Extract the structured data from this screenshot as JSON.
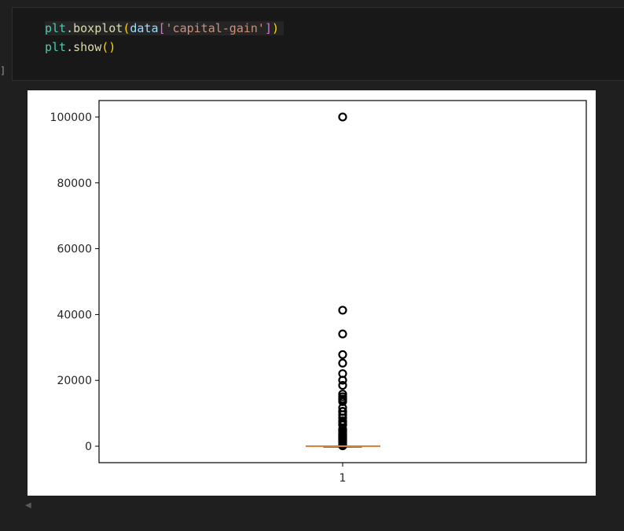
{
  "cell": {
    "execution_bracket": "]",
    "code_lines": [
      [
        {
          "t": "plt",
          "c": "var"
        },
        {
          "t": ".",
          "c": "punc"
        },
        {
          "t": "boxplot",
          "c": "fn"
        },
        {
          "t": "(",
          "c": "paren"
        },
        {
          "t": "data",
          "c": "param"
        },
        {
          "t": "[",
          "c": "brack"
        },
        {
          "t": "'capital-gain'",
          "c": "str"
        },
        {
          "t": "]",
          "c": "brack"
        },
        {
          "t": ")",
          "c": "paren"
        }
      ],
      [
        {
          "t": "plt",
          "c": "var"
        },
        {
          "t": ".",
          "c": "punc"
        },
        {
          "t": "show",
          "c": "fn"
        },
        {
          "t": "(",
          "c": "paren"
        },
        {
          "t": ")",
          "c": "paren"
        }
      ]
    ]
  },
  "chart_data": {
    "type": "boxplot",
    "categories": [
      "1"
    ],
    "yticks": [
      0,
      20000,
      40000,
      60000,
      80000,
      100000
    ],
    "ytick_labels": [
      "0",
      "20000",
      "40000",
      "60000",
      "80000",
      "100000"
    ],
    "ylim": [
      -5000,
      105000
    ],
    "box": {
      "q1": 0,
      "median": 0,
      "q3": 0,
      "whisker_low": 0,
      "whisker_high": 0
    },
    "outliers": [
      99999,
      41310,
      34095,
      27828,
      25236,
      22040,
      20051,
      18481,
      15831,
      15024,
      14344,
      14084,
      13550,
      11678,
      10605,
      10520,
      9562,
      8614,
      7688,
      7298,
      6849,
      6418,
      5178,
      5013,
      4787,
      4386,
      3908,
      3674,
      3325,
      3103,
      2829,
      2597,
      2354,
      2174,
      1848,
      1506,
      1055,
      594,
      114
    ],
    "colors": {
      "median": "#d6853a",
      "box": "#000000",
      "outlier": "#000000"
    },
    "title": "",
    "xlabel": "",
    "ylabel": "",
    "grid": false
  },
  "scroll_indicator": "◀"
}
